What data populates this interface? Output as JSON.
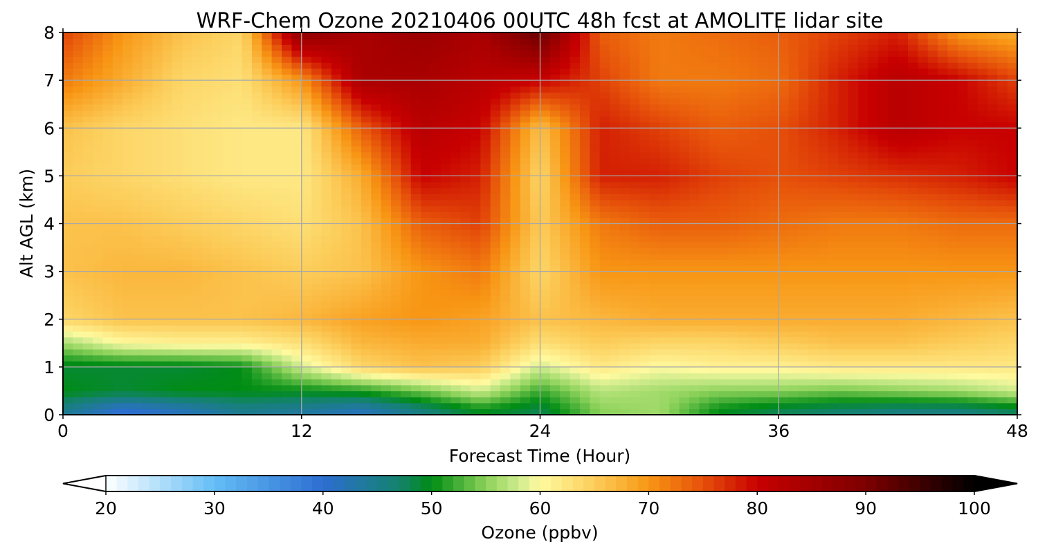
{
  "chart_data": {
    "type": "heatmap",
    "title": "WRF-Chem Ozone  20210406 00UTC 48h fcst at AMOLITE lidar site",
    "xlabel": "Forecast Time (Hour)",
    "ylabel": "Alt AGL (km)",
    "xlim": [
      0,
      48
    ],
    "ylim": [
      0,
      8
    ],
    "x_ticks": [
      "0",
      "12",
      "24",
      "36",
      "48"
    ],
    "y_ticks": [
      "0",
      "1",
      "2",
      "3",
      "4",
      "5",
      "6",
      "7",
      "8"
    ],
    "grid": true,
    "x_hours": [
      0,
      3,
      6,
      9,
      12,
      15,
      18,
      21,
      24,
      27,
      30,
      33,
      36,
      39,
      42,
      45,
      48
    ],
    "alt_km": [
      0.1,
      0.5,
      1.0,
      1.5,
      2.0,
      3.0,
      4.0,
      5.0,
      6.0,
      7.0,
      8.0
    ],
    "ozone_ppbv": [
      [
        45,
        40,
        42,
        45,
        44,
        42,
        46,
        50,
        48,
        55,
        56,
        50,
        48,
        47,
        46,
        46,
        48
      ],
      [
        50,
        49,
        50,
        50,
        50,
        51,
        54,
        58,
        52,
        57,
        56,
        55,
        55,
        54,
        55,
        56,
        58
      ],
      [
        49,
        49,
        49,
        50,
        58,
        64,
        66,
        65,
        58,
        62,
        60,
        61,
        61,
        62,
        62,
        62,
        62
      ],
      [
        56,
        60,
        61,
        61,
        63,
        67,
        68,
        68,
        63,
        65,
        64,
        64,
        65,
        66,
        66,
        65,
        64
      ],
      [
        64,
        66,
        66,
        66,
        67,
        69,
        70,
        69,
        66,
        67,
        68,
        68,
        68,
        68,
        68,
        67,
        66
      ],
      [
        66,
        67,
        67,
        66,
        65,
        66,
        70,
        72,
        64,
        70,
        70,
        70,
        70,
        70,
        70,
        70,
        70
      ],
      [
        66,
        66,
        65,
        64,
        63,
        66,
        74,
        76,
        65,
        72,
        74,
        74,
        73,
        72,
        72,
        73,
        73
      ],
      [
        65,
        64,
        63,
        62,
        62,
        68,
        80,
        78,
        64,
        78,
        78,
        76,
        75,
        76,
        77,
        78,
        80
      ],
      [
        66,
        64,
        63,
        62,
        62,
        74,
        82,
        80,
        66,
        78,
        76,
        74,
        75,
        78,
        82,
        80,
        80
      ],
      [
        72,
        68,
        64,
        63,
        70,
        84,
        84,
        82,
        80,
        76,
        72,
        72,
        73,
        78,
        82,
        80,
        76
      ],
      [
        76,
        70,
        66,
        64,
        88,
        84,
        86,
        84,
        92,
        74,
        72,
        73,
        74,
        76,
        78,
        70,
        68
      ]
    ],
    "colorbar": {
      "label": "Ozone  (ppbv)",
      "ticks": [
        "20",
        "30",
        "40",
        "50",
        "60",
        "70",
        "80",
        "90",
        "100"
      ],
      "range": [
        20,
        100
      ],
      "extend": "both"
    }
  }
}
